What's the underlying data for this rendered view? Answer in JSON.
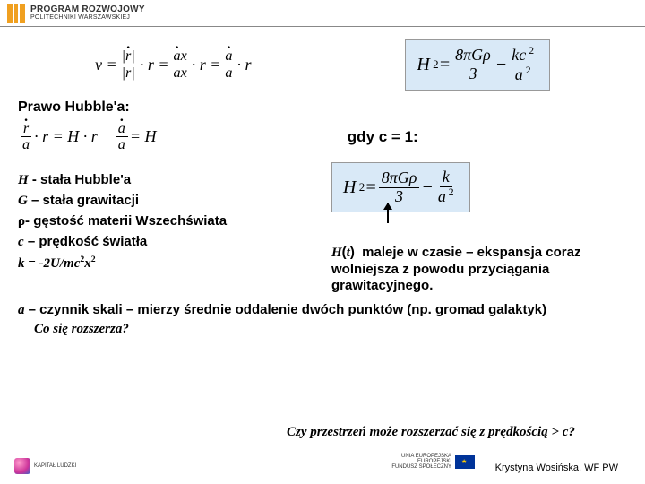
{
  "header": {
    "line1": "PROGRAM ROZWOJOWY",
    "line2": "POLITECHNIKI WARSZAWSKIEJ"
  },
  "equations": {
    "velocity_left_html": "v = <span class='frac'><span class='num'>|<span class='dot-over'>r</span>|</span><span class='den'>|r|</span></span> · r = <span class='frac'><span class='num'><span class='dot-over'>a</span>x</span><span class='den'>ax</span></span> · r = <span class='frac'><span class='num'><span class='dot-over'>a</span></span><span class='den'>a</span></span> · r",
    "friedmann_full_html": "H<sup>&nbsp;2</sup> = <span class='frac'><span class='num'>8πGρ</span><span class='den'>3</span></span> − <span class='frac'><span class='num'>kc<sup>&nbsp;2</sup></span><span class='den'>a<sup>&nbsp;2</sup></span></span>",
    "hubble_def_html": "<span class='frac'><span class='num'><span class='dot-over'>r</span></span><span class='den'>a</span></span> · r = H · r &nbsp;&nbsp;&nbsp; <span class='frac'><span class='num'><span class='dot-over'>a</span></span><span class='den'>a</span></span> = H",
    "friedmann_c1_html": "H<sup>&nbsp;2</sup> = <span class='frac'><span class='num'>8πGρ</span><span class='den'>3</span></span> − <span class='frac'><span class='num'>k</span><span class='den'>a<sup>&nbsp;2</sup></span></span>"
  },
  "labels": {
    "hubble_law": "Prawo Hubble'a:",
    "gdy": "gdy c = 1:"
  },
  "defs": {
    "H": "H - stała Hubble'a",
    "G": "G – stała grawitacji",
    "rho_prefix": "ρ",
    "rho_rest": "- gęstość materii Wszechświata",
    "c": "c – prędkość światła",
    "k_html": "k = -2U/mc<sup>2</sup>x<sup>2</sup>"
  },
  "ht_note_html": "<span class='hi'>H</span>(<span class='hi'>t</span>)&nbsp; maleje w czasie – ekspansja coraz wolniejsza z powodu przyciągania grawitacyjnego.",
  "bottom": {
    "a_def": "a – czynnik skali – mierzy średnie oddalenie dwóch punktów (np. gromad galaktyk)",
    "q_left": "Co się rozszerza?",
    "q_right": "Czy przestrzeń może rozszerzać się z prędkością > c?"
  },
  "footer": {
    "kl": "KAPITAŁ LUDZKI",
    "eu": "EUROPEJSKI\nFUNDUSZ SPOŁECZNY",
    "author": "Krystyna Wosińska, WF PW"
  }
}
